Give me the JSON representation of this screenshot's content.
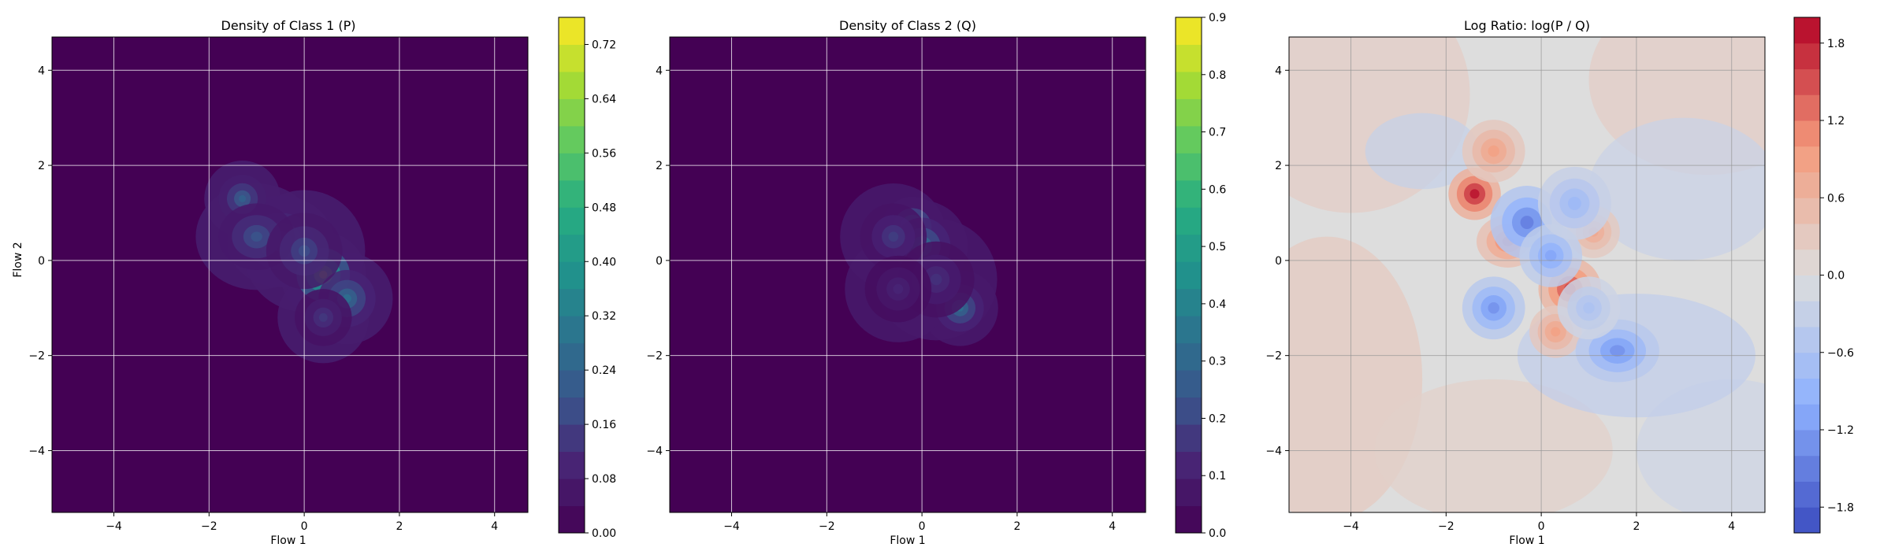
{
  "chart_data": [
    {
      "type": "heatmap",
      "title": "Density of Class 1 (P)",
      "xlabel": "Flow 1",
      "ylabel": "Flow 2",
      "xlim": [
        -5.3,
        4.7
      ],
      "ylim": [
        -5.3,
        4.7
      ],
      "xticks": [
        -4,
        -2,
        0,
        2,
        4
      ],
      "yticks": [
        -4,
        -2,
        0,
        2,
        4
      ],
      "grid": true,
      "colormap": "viridis",
      "colorbar": {
        "min": 0.0,
        "max": 0.76,
        "ticks": [
          0.0,
          0.08,
          0.16,
          0.24,
          0.32,
          0.4,
          0.48,
          0.56,
          0.64,
          0.72
        ],
        "labels": [
          "0.00",
          "0.08",
          "0.16",
          "0.24",
          "0.32",
          "0.40",
          "0.48",
          "0.56",
          "0.64",
          "0.72"
        ]
      },
      "density_blobs": [
        {
          "x": 0.4,
          "y": -0.3,
          "sx": 0.28,
          "sy": 0.28,
          "v": 0.62
        },
        {
          "x": -0.5,
          "y": 0.4,
          "sx": 0.35,
          "sy": 0.3,
          "v": 0.3
        },
        {
          "x": -1.3,
          "y": 1.3,
          "sx": 0.25,
          "sy": 0.25,
          "v": 0.24
        },
        {
          "x": 0.9,
          "y": -0.8,
          "sx": 0.3,
          "sy": 0.3,
          "v": 0.28
        },
        {
          "x": -1.0,
          "y": 0.5,
          "sx": 0.4,
          "sy": 0.35,
          "v": 0.2
        },
        {
          "x": 0.0,
          "y": 0.2,
          "sx": 0.4,
          "sy": 0.4,
          "v": 0.18
        },
        {
          "x": 0.4,
          "y": -1.2,
          "sx": 0.3,
          "sy": 0.3,
          "v": 0.14
        }
      ]
    },
    {
      "type": "heatmap",
      "title": "Density of Class 2 (Q)",
      "xlabel": "Flow 1",
      "xlim": [
        -5.3,
        4.7
      ],
      "ylim": [
        -5.3,
        4.7
      ],
      "xticks": [
        -4,
        -2,
        0,
        2,
        4
      ],
      "yticks": [
        -4,
        -2,
        0,
        2,
        4
      ],
      "grid": true,
      "colormap": "viridis",
      "colorbar": {
        "min": 0.0,
        "max": 0.9,
        "ticks": [
          0.0,
          0.1,
          0.2,
          0.3,
          0.4,
          0.5,
          0.6,
          0.7,
          0.8,
          0.9
        ],
        "labels": [
          "0.0",
          "0.1",
          "0.2",
          "0.3",
          "0.4",
          "0.5",
          "0.6",
          "0.7",
          "0.8",
          "0.9"
        ]
      },
      "density_blobs": [
        {
          "x": -0.2,
          "y": 0.7,
          "sx": 0.2,
          "sy": 0.2,
          "v": 0.55
        },
        {
          "x": 0.0,
          "y": 0.3,
          "sx": 0.3,
          "sy": 0.3,
          "v": 0.35
        },
        {
          "x": 0.8,
          "y": -1.0,
          "sx": 0.25,
          "sy": 0.25,
          "v": 0.33
        },
        {
          "x": -0.6,
          "y": 0.5,
          "sx": 0.35,
          "sy": 0.35,
          "v": 0.18
        },
        {
          "x": 0.3,
          "y": -0.4,
          "sx": 0.4,
          "sy": 0.4,
          "v": 0.15
        },
        {
          "x": -0.5,
          "y": -0.6,
          "sx": 0.35,
          "sy": 0.35,
          "v": 0.12
        }
      ]
    },
    {
      "type": "heatmap",
      "title": "Log Ratio: log(P / Q)",
      "xlabel": "Flow 1",
      "xlim": [
        -5.3,
        4.7
      ],
      "ylim": [
        -5.3,
        4.7
      ],
      "xticks": [
        -4,
        -2,
        0,
        2,
        4
      ],
      "yticks": [
        -4,
        -2,
        0,
        2,
        4
      ],
      "grid": true,
      "colormap": "coolwarm",
      "colorbar": {
        "min": -2.0,
        "max": 2.0,
        "ticks": [
          -1.8,
          -1.2,
          -0.6,
          0.0,
          0.6,
          1.2,
          1.8
        ],
        "labels": [
          "−1.8",
          "−1.2",
          "−0.6",
          "0.0",
          "0.6",
          "1.2",
          "1.8"
        ]
      },
      "ratio_blobs": [
        {
          "x": -1.4,
          "y": 1.4,
          "sx": 0.25,
          "sy": 0.25,
          "v": 1.9
        },
        {
          "x": 0.6,
          "y": -0.6,
          "sx": 0.3,
          "sy": 0.3,
          "v": 1.6
        },
        {
          "x": -0.7,
          "y": 0.4,
          "sx": 0.3,
          "sy": 0.25,
          "v": 1.2
        },
        {
          "x": -1.0,
          "y": 2.3,
          "sx": 0.3,
          "sy": 0.3,
          "v": 0.9
        },
        {
          "x": 1.1,
          "y": 0.6,
          "sx": 0.25,
          "sy": 0.25,
          "v": 0.8
        },
        {
          "x": 0.3,
          "y": -1.5,
          "sx": 0.25,
          "sy": 0.25,
          "v": 0.9
        },
        {
          "x": -0.3,
          "y": 0.8,
          "sx": 0.35,
          "sy": 0.35,
          "v": -1.5
        },
        {
          "x": 0.2,
          "y": 0.1,
          "sx": 0.3,
          "sy": 0.3,
          "v": -1.1
        },
        {
          "x": -1.0,
          "y": -1.0,
          "sx": 0.3,
          "sy": 0.3,
          "v": -1.3
        },
        {
          "x": 1.6,
          "y": -1.9,
          "sx": 0.4,
          "sy": 0.3,
          "v": -1.3
        },
        {
          "x": 0.7,
          "y": 1.2,
          "sx": 0.35,
          "sy": 0.35,
          "v": -0.8
        },
        {
          "x": 1.0,
          "y": -1.0,
          "sx": 0.3,
          "sy": 0.3,
          "v": -0.6
        }
      ]
    }
  ]
}
